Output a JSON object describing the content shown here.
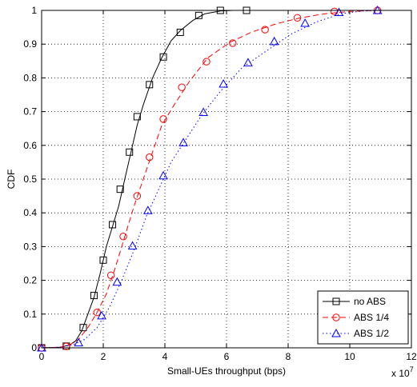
{
  "chart_data": {
    "type": "line",
    "title": "",
    "xlabel": "Small-UEs throughput (bps)",
    "ylabel": "CDF",
    "x_multiplier": "x 10",
    "x_multiplier_exp": "7",
    "xlim": [
      0,
      12
    ],
    "ylim": [
      0,
      1
    ],
    "xticks": [
      0,
      2,
      4,
      6,
      8,
      10,
      12
    ],
    "yticks": [
      0,
      0.1,
      0.2,
      0.3,
      0.4,
      0.5,
      0.6,
      0.7,
      0.8,
      0.9,
      1
    ],
    "grid": true,
    "legend_position": "bottom-right",
    "series": [
      {
        "name": "no ABS",
        "color": "#000000",
        "line_style": "solid",
        "marker": "square",
        "curve": [
          [
            0,
            0
          ],
          [
            0.6,
            0.002
          ],
          [
            0.9,
            0.008
          ],
          [
            1.1,
            0.02
          ],
          [
            1.3,
            0.05
          ],
          [
            1.5,
            0.1
          ],
          [
            1.7,
            0.15
          ],
          [
            1.9,
            0.22
          ],
          [
            2.1,
            0.3
          ],
          [
            2.3,
            0.36
          ],
          [
            2.5,
            0.42
          ],
          [
            2.7,
            0.5
          ],
          [
            2.9,
            0.58
          ],
          [
            3.1,
            0.66
          ],
          [
            3.3,
            0.72
          ],
          [
            3.6,
            0.8
          ],
          [
            3.9,
            0.86
          ],
          [
            4.2,
            0.91
          ],
          [
            4.5,
            0.94
          ],
          [
            4.9,
            0.97
          ],
          [
            5.3,
            0.99
          ],
          [
            5.8,
            0.998
          ],
          [
            6.2,
            1.0
          ]
        ],
        "markers": [
          [
            0,
            0
          ],
          [
            0.8,
            0.005
          ],
          [
            1.35,
            0.06
          ],
          [
            1.7,
            0.155
          ],
          [
            2.0,
            0.26
          ],
          [
            2.3,
            0.365
          ],
          [
            2.55,
            0.47
          ],
          [
            2.85,
            0.58
          ],
          [
            3.1,
            0.685
          ],
          [
            3.5,
            0.78
          ],
          [
            3.95,
            0.862
          ],
          [
            4.5,
            0.935
          ],
          [
            5.1,
            0.985
          ],
          [
            5.8,
            1.0
          ],
          [
            6.65,
            1.0
          ]
        ]
      },
      {
        "name": "ABS 1/4",
        "color": "#ff0000",
        "line_style": "dashed",
        "marker": "circle",
        "curve": [
          [
            0,
            0
          ],
          [
            0.6,
            0.002
          ],
          [
            0.9,
            0.008
          ],
          [
            1.2,
            0.025
          ],
          [
            1.5,
            0.06
          ],
          [
            1.8,
            0.105
          ],
          [
            2.1,
            0.16
          ],
          [
            2.4,
            0.24
          ],
          [
            2.7,
            0.33
          ],
          [
            3.0,
            0.42
          ],
          [
            3.3,
            0.5
          ],
          [
            3.6,
            0.58
          ],
          [
            3.9,
            0.66
          ],
          [
            4.3,
            0.72
          ],
          [
            4.8,
            0.79
          ],
          [
            5.4,
            0.86
          ],
          [
            6.1,
            0.905
          ],
          [
            6.8,
            0.935
          ],
          [
            7.6,
            0.96
          ],
          [
            8.4,
            0.978
          ],
          [
            9.2,
            0.99
          ],
          [
            10.0,
            0.997
          ],
          [
            10.9,
            1.0
          ]
        ],
        "markers": [
          [
            0,
            0
          ],
          [
            0.8,
            0.004
          ],
          [
            1.8,
            0.105
          ],
          [
            2.25,
            0.215
          ],
          [
            2.65,
            0.33
          ],
          [
            3.1,
            0.45
          ],
          [
            3.5,
            0.565
          ],
          [
            3.95,
            0.678
          ],
          [
            4.55,
            0.772
          ],
          [
            5.35,
            0.848
          ],
          [
            6.2,
            0.903
          ],
          [
            7.25,
            0.943
          ],
          [
            8.3,
            0.978
          ],
          [
            9.5,
            0.997
          ],
          [
            10.9,
            1.0
          ]
        ]
      },
      {
        "name": "ABS 1/2",
        "color": "#0000ff",
        "line_style": "dotted",
        "marker": "triangle",
        "curve": [
          [
            0,
            0
          ],
          [
            0.6,
            0.002
          ],
          [
            1.0,
            0.008
          ],
          [
            1.4,
            0.025
          ],
          [
            1.8,
            0.06
          ],
          [
            2.2,
            0.12
          ],
          [
            2.6,
            0.2
          ],
          [
            3.0,
            0.29
          ],
          [
            3.4,
            0.39
          ],
          [
            3.8,
            0.47
          ],
          [
            4.2,
            0.55
          ],
          [
            4.7,
            0.62
          ],
          [
            5.2,
            0.69
          ],
          [
            5.8,
            0.76
          ],
          [
            6.5,
            0.83
          ],
          [
            7.3,
            0.88
          ],
          [
            8.1,
            0.93
          ],
          [
            8.9,
            0.965
          ],
          [
            9.7,
            0.99
          ],
          [
            10.4,
            0.998
          ],
          [
            11.0,
            1.0
          ]
        ],
        "markers": [
          [
            0,
            0
          ],
          [
            1.2,
            0.015
          ],
          [
            1.95,
            0.095
          ],
          [
            2.45,
            0.195
          ],
          [
            2.95,
            0.302
          ],
          [
            3.45,
            0.407
          ],
          [
            3.95,
            0.51
          ],
          [
            4.6,
            0.608
          ],
          [
            5.25,
            0.698
          ],
          [
            5.9,
            0.782
          ],
          [
            6.7,
            0.845
          ],
          [
            7.55,
            0.908
          ],
          [
            8.55,
            0.962
          ],
          [
            9.65,
            0.994
          ],
          [
            10.9,
            1.0
          ]
        ]
      }
    ]
  }
}
